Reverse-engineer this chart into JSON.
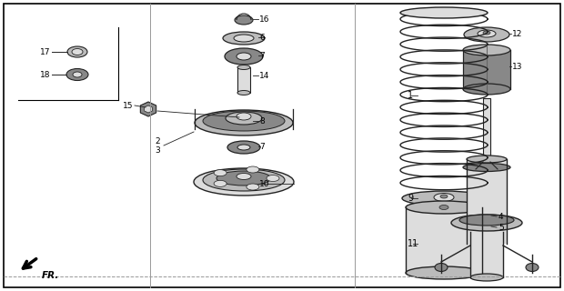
{
  "bg_color": "#ffffff",
  "border_color": "#000000",
  "line_color": "#222222",
  "gray_dark": "#555555",
  "gray_mid": "#888888",
  "gray_light": "#bbbbbb",
  "gray_lighter": "#dddddd"
}
